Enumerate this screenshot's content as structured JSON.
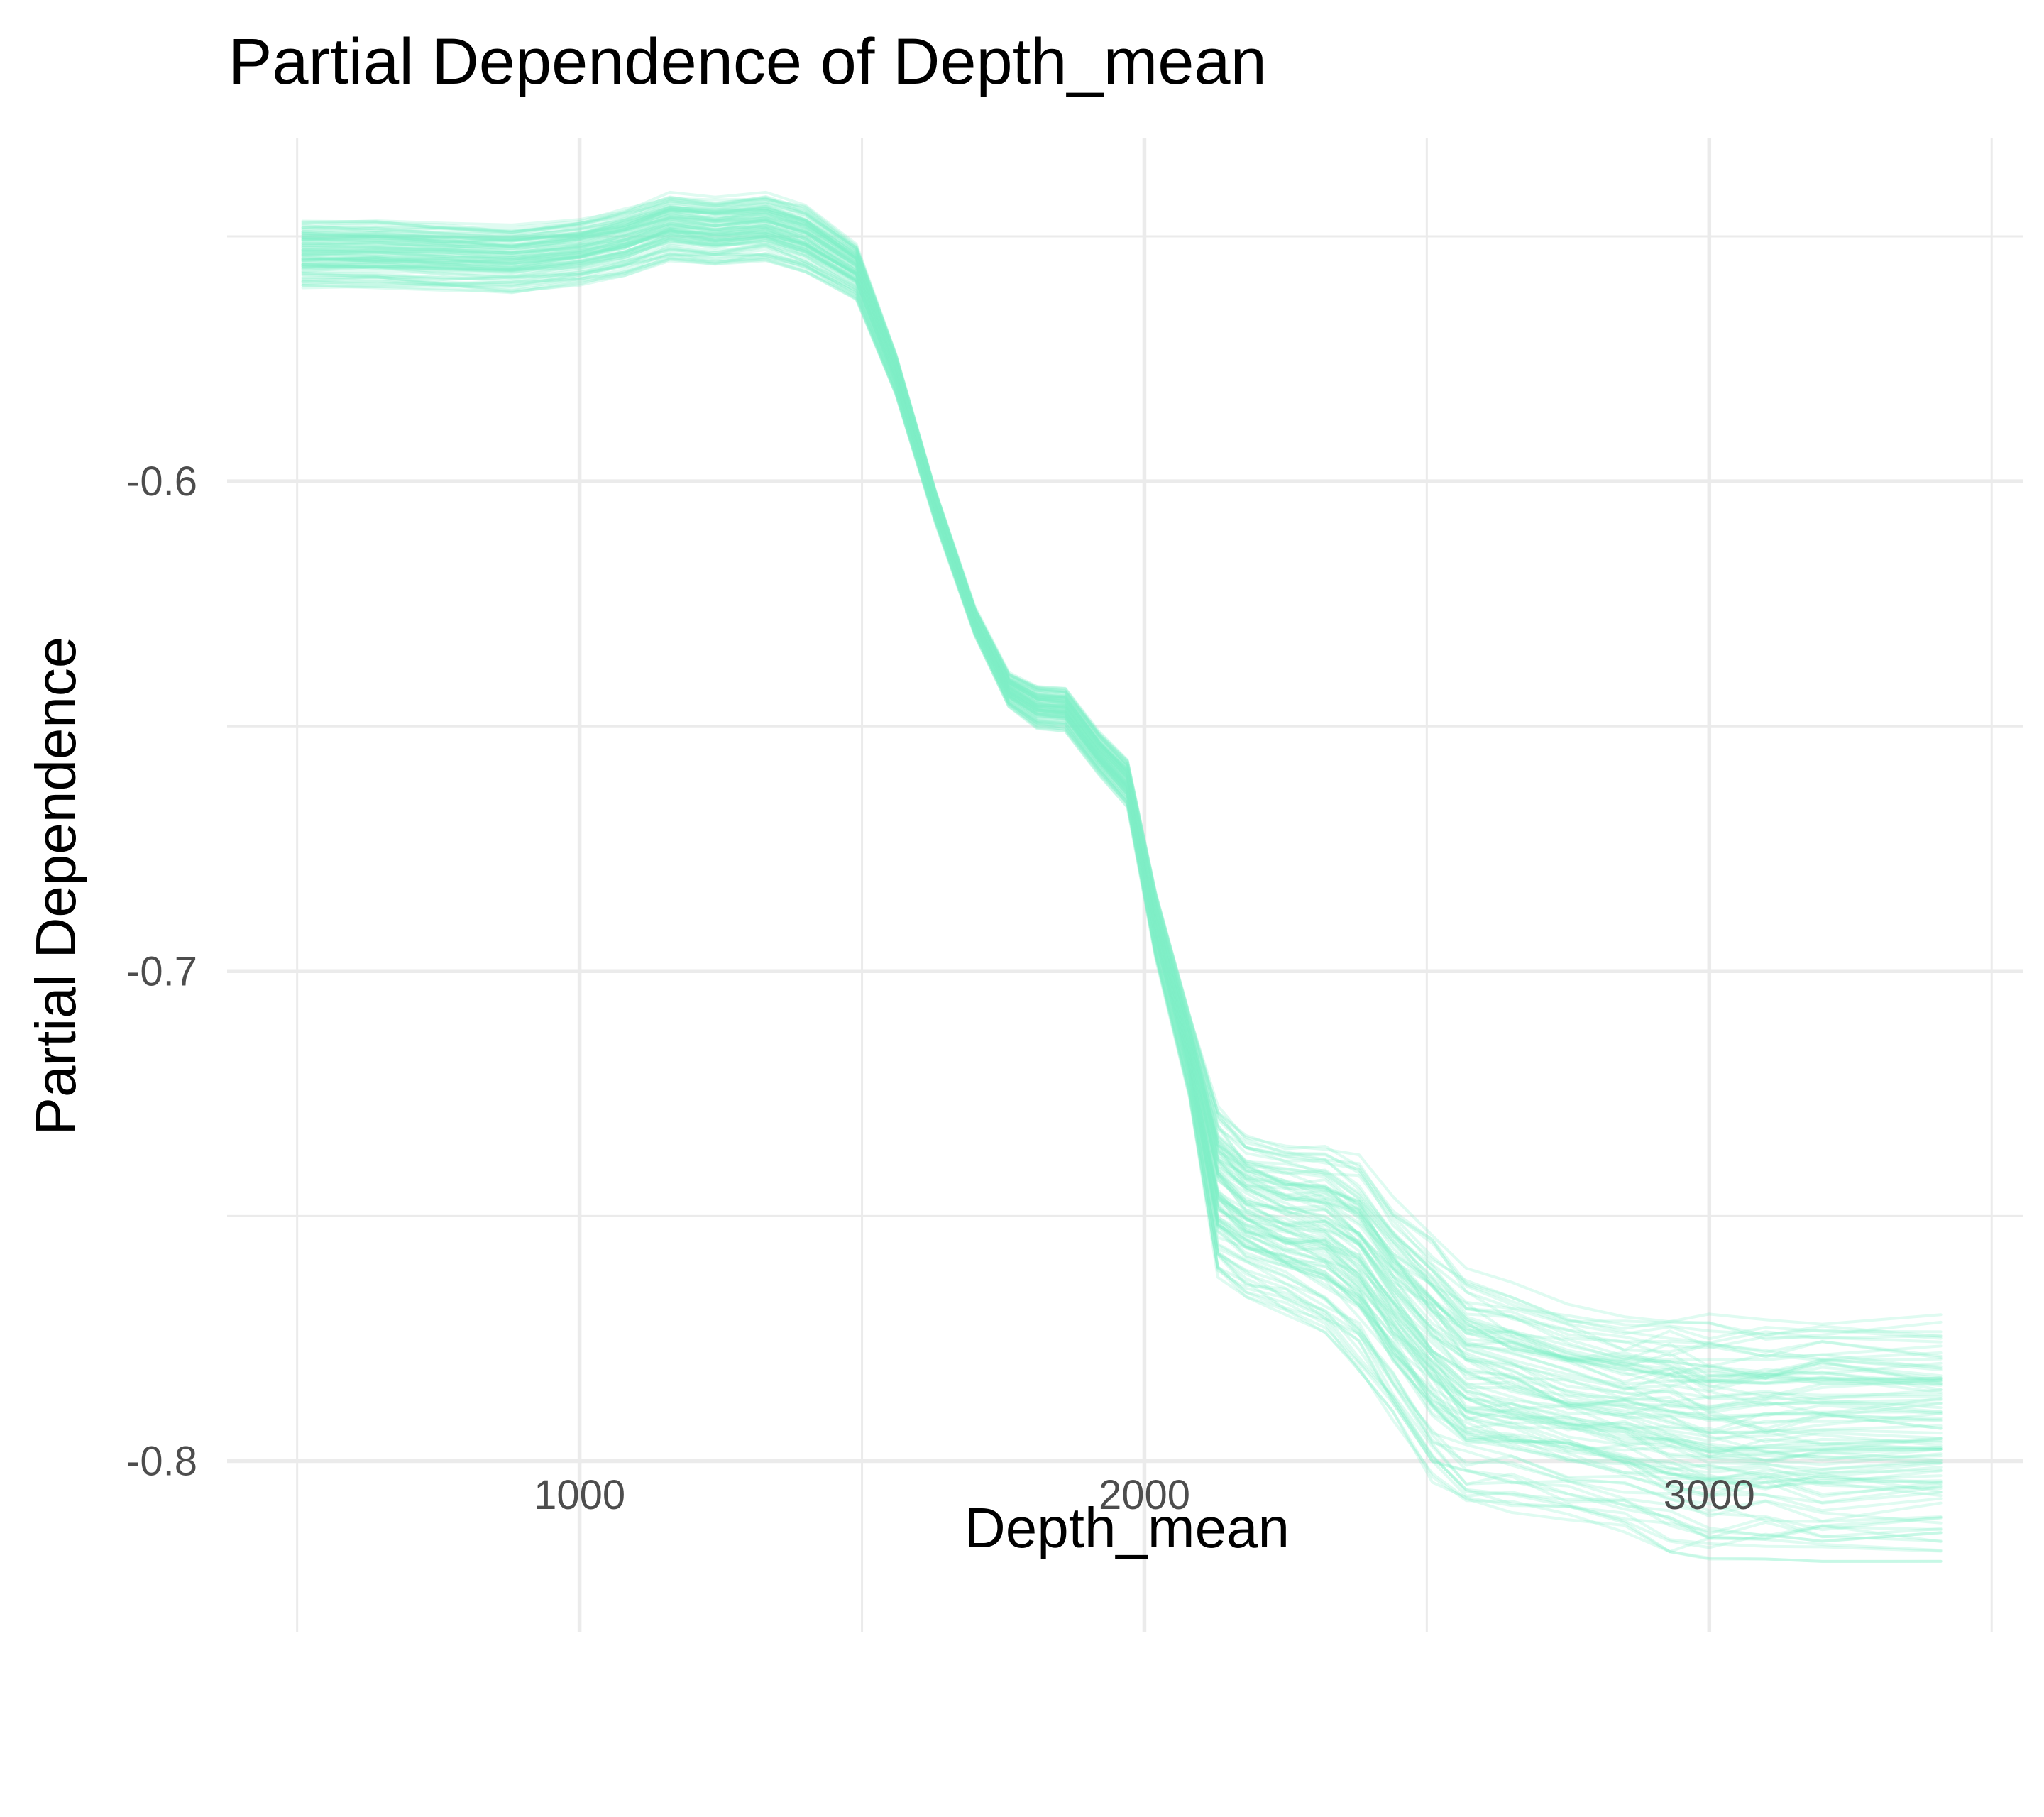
{
  "chart_data": {
    "type": "line",
    "title": "Partial Dependence of Depth_mean",
    "xlabel": "Depth_mean",
    "ylabel": "Partial Dependence",
    "xlim": [
      376,
      3555
    ],
    "ylim": [
      -0.835,
      -0.53
    ],
    "x_ticks": [
      1000,
      2000,
      3000
    ],
    "x_tick_labels": [
      "1000",
      "2000",
      "3000"
    ],
    "x_minor_ticks": [
      500,
      1500,
      2500,
      3500
    ],
    "y_ticks": [
      -0.6,
      -0.7,
      -0.8
    ],
    "y_tick_labels": [
      "-0.6",
      "-0.7",
      "-0.8"
    ],
    "y_minor_ticks": [
      -0.55,
      -0.65,
      -0.75
    ],
    "grid": true,
    "legend": "none",
    "line_color": "#7ff0c7",
    "line_opacity": 0.25,
    "num_lines": 100,
    "x": [
      510,
      640,
      760,
      880,
      1000,
      1080,
      1160,
      1240,
      1330,
      1400,
      1490,
      1560,
      1630,
      1700,
      1760,
      1810,
      1860,
      1920,
      1970,
      2020,
      2080,
      2130,
      2180,
      2250,
      2320,
      2380,
      2440,
      2510,
      2570,
      2650,
      2750,
      2850,
      2930,
      3000,
      3100,
      3200,
      3410
    ],
    "center_curve": [
      -0.5535,
      -0.5535,
      -0.554,
      -0.5545,
      -0.553,
      -0.551,
      -0.548,
      -0.549,
      -0.548,
      -0.5505,
      -0.557,
      -0.578,
      -0.605,
      -0.6285,
      -0.6425,
      -0.646,
      -0.6465,
      -0.6555,
      -0.6615,
      -0.6905,
      -0.717,
      -0.7445,
      -0.7495,
      -0.7525,
      -0.7545,
      -0.7595,
      -0.769,
      -0.7785,
      -0.785,
      -0.787,
      -0.79,
      -0.792,
      -0.7935,
      -0.795,
      -0.795,
      -0.795,
      -0.795
    ],
    "band_low": [
      -0.5605,
      -0.5605,
      -0.561,
      -0.5615,
      -0.56,
      -0.558,
      -0.555,
      -0.556,
      -0.555,
      -0.5575,
      -0.563,
      -0.5825,
      -0.6085,
      -0.6315,
      -0.646,
      -0.6505,
      -0.651,
      -0.66,
      -0.6665,
      -0.6975,
      -0.726,
      -0.7625,
      -0.7665,
      -0.7705,
      -0.7745,
      -0.7815,
      -0.792,
      -0.8045,
      -0.8095,
      -0.8105,
      -0.812,
      -0.8145,
      -0.8185,
      -0.82,
      -0.82,
      -0.8205,
      -0.8205
    ],
    "band_high": [
      -0.5465,
      -0.5465,
      -0.547,
      -0.5475,
      -0.546,
      -0.544,
      -0.541,
      -0.542,
      -0.541,
      -0.5435,
      -0.551,
      -0.5735,
      -0.6015,
      -0.6255,
      -0.639,
      -0.6415,
      -0.642,
      -0.651,
      -0.6565,
      -0.6835,
      -0.708,
      -0.7265,
      -0.7325,
      -0.7345,
      -0.7345,
      -0.7375,
      -0.746,
      -0.7525,
      -0.7605,
      -0.7635,
      -0.768,
      -0.7695,
      -0.7685,
      -0.77,
      -0.77,
      -0.7695,
      -0.7695
    ]
  }
}
